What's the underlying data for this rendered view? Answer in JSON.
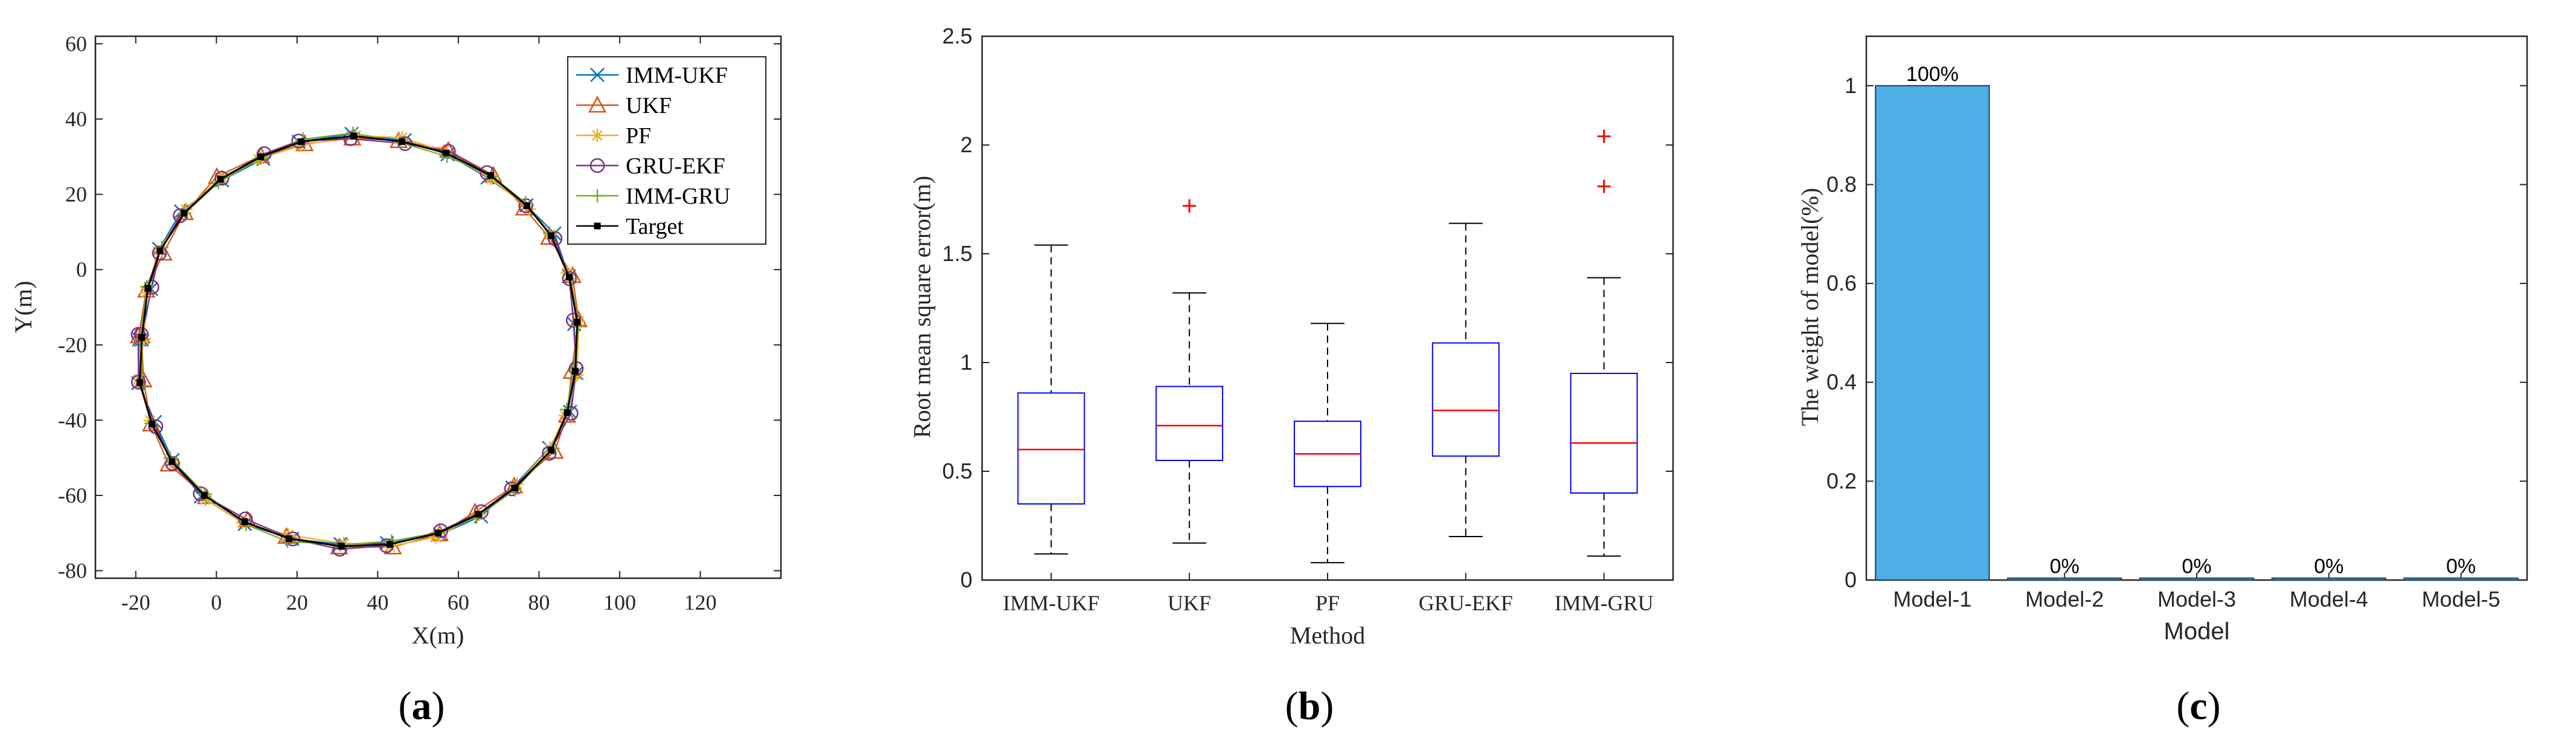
{
  "figure": {
    "panel_labels": [
      "a",
      "b",
      "c"
    ]
  },
  "chart_data": [
    {
      "type": "line",
      "panel": "a",
      "xlabel": "X(m)",
      "ylabel": "Y(m)",
      "xlim": [
        -30,
        140
      ],
      "ylim": [
        -82,
        62
      ],
      "xticks": [
        -20,
        0,
        20,
        40,
        60,
        80,
        100,
        120
      ],
      "yticks": [
        -80,
        -60,
        -40,
        -20,
        0,
        20,
        40,
        60
      ],
      "legend": {
        "position": "top-right",
        "entries": [
          "IMM-UKF",
          "UKF",
          "PF",
          "GRU-EKF",
          "IMM-GRU",
          "Target"
        ]
      },
      "series": [
        {
          "name": "IMM-UKF",
          "color": "#0072BD",
          "marker": "x"
        },
        {
          "name": "UKF",
          "color": "#D95319",
          "marker": "triangle"
        },
        {
          "name": "PF",
          "color": "#EDB120",
          "marker": "star"
        },
        {
          "name": "GRU-EKF",
          "color": "#7E2F8E",
          "marker": "circle"
        },
        {
          "name": "IMM-GRU",
          "color": "#77AC30",
          "marker": "plus"
        },
        {
          "name": "Target",
          "color": "#000000",
          "marker": "square"
        }
      ],
      "target_points": [
        {
          "x": -18.5,
          "y": -18
        },
        {
          "x": -17,
          "y": -5
        },
        {
          "x": -14,
          "y": 5
        },
        {
          "x": -8,
          "y": 15
        },
        {
          "x": 1,
          "y": 24
        },
        {
          "x": 11,
          "y": 30
        },
        {
          "x": 21,
          "y": 34
        },
        {
          "x": 34,
          "y": 35.5
        },
        {
          "x": 46,
          "y": 34
        },
        {
          "x": 57,
          "y": 31
        },
        {
          "x": 68,
          "y": 25
        },
        {
          "x": 77,
          "y": 17
        },
        {
          "x": 83,
          "y": 9
        },
        {
          "x": 87.5,
          "y": -2
        },
        {
          "x": 89.5,
          "y": -14
        },
        {
          "x": 89,
          "y": -27
        },
        {
          "x": 87,
          "y": -38
        },
        {
          "x": 83,
          "y": -48
        },
        {
          "x": 74,
          "y": -58
        },
        {
          "x": 65,
          "y": -65
        },
        {
          "x": 55,
          "y": -70
        },
        {
          "x": 43,
          "y": -73
        },
        {
          "x": 31,
          "y": -73.5
        },
        {
          "x": 18,
          "y": -71.5
        },
        {
          "x": 7,
          "y": -67
        },
        {
          "x": -3,
          "y": -60
        },
        {
          "x": -11,
          "y": -51
        },
        {
          "x": -16,
          "y": -41
        },
        {
          "x": -19,
          "y": -30
        },
        {
          "x": -18.5,
          "y": -18
        }
      ]
    },
    {
      "type": "box",
      "panel": "b",
      "xlabel": "Method",
      "ylabel": "Root mean square error(m)",
      "ylim": [
        0,
        2.5
      ],
      "yticks": [
        0,
        0.5,
        1,
        1.5,
        2,
        2.5
      ],
      "ytick_labels": [
        "0",
        "0.5",
        "1",
        "1.5",
        "2",
        "2.5"
      ],
      "categories": [
        "IMM-UKF",
        "UKF",
        "PF",
        "GRU-EKF",
        "IMM-GRU"
      ],
      "boxes": [
        {
          "name": "IMM-UKF",
          "min": 0.12,
          "q1": 0.35,
          "median": 0.6,
          "q3": 0.86,
          "max": 1.54,
          "outliers": []
        },
        {
          "name": "UKF",
          "min": 0.17,
          "q1": 0.55,
          "median": 0.71,
          "q3": 0.89,
          "max": 1.32,
          "outliers": [
            1.72
          ]
        },
        {
          "name": "PF",
          "min": 0.08,
          "q1": 0.43,
          "median": 0.58,
          "q3": 0.73,
          "max": 1.18,
          "outliers": []
        },
        {
          "name": "GRU-EKF",
          "min": 0.2,
          "q1": 0.57,
          "median": 0.78,
          "q3": 1.09,
          "max": 1.64,
          "outliers": []
        },
        {
          "name": "IMM-GRU",
          "min": 0.11,
          "q1": 0.4,
          "median": 0.63,
          "q3": 0.95,
          "max": 1.39,
          "outliers": [
            1.81,
            2.04
          ]
        }
      ],
      "colors": {
        "box": "#0000FF",
        "median": "#FF0000",
        "outlier": "#FF0000",
        "whisker": "#000000"
      }
    },
    {
      "type": "bar",
      "panel": "c",
      "xlabel": "Model",
      "ylabel": "The weight of model(%)",
      "ylim": [
        0,
        1.1
      ],
      "yticks": [
        0,
        0.2,
        0.4,
        0.6,
        0.8,
        1
      ],
      "ytick_labels": [
        "0",
        "0.2",
        "0.4",
        "0.6",
        "0.8",
        "1"
      ],
      "categories": [
        "Model-1",
        "Model-2",
        "Model-3",
        "Model-4",
        "Model-5"
      ],
      "values": [
        1,
        0.004,
        0.004,
        0.004,
        0.004
      ],
      "data_labels": [
        "100%",
        "0%",
        "0%",
        "0%",
        "0%"
      ],
      "bar_color": "#4DAFE5"
    }
  ]
}
